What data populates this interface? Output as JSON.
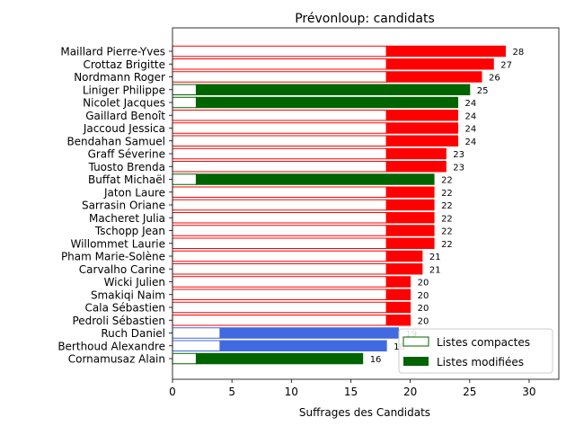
{
  "chart_data": {
    "type": "bar",
    "orientation": "horizontal",
    "stacked": true,
    "title": "Prévonloup: candidats",
    "xlabel": "Suffrages des Candidats",
    "ylabel": "",
    "xlim": [
      0,
      32.5
    ],
    "xticks": [
      0,
      5,
      10,
      15,
      20,
      25,
      30
    ],
    "grid": false,
    "legend_position": "lower-right",
    "categories": [
      "Maillard Pierre-Yves",
      "Crottaz Brigitte",
      "Nordmann Roger",
      "Liniger Philippe",
      "Nicolet Jacques",
      "Gaillard Benoît",
      "Jaccoud Jessica",
      "Bendahan Samuel",
      "Graff Séverine",
      "Tuosto Brenda",
      "Buffat Michaël",
      "Jaton Laure",
      "Sarrasin Oriane",
      "Macheret Julia",
      "Tschopp Jean",
      "Willommet Laurie",
      "Pham Marie-Solène",
      "Carvalho Carine",
      "Wicki Julien",
      "Smakiqi Naim",
      "Cala Sébastien",
      "Pedroli Sébastien",
      "Ruch Daniel",
      "Berthoud Alexandre",
      "Cornamusaz Alain"
    ],
    "series": [
      {
        "name": "Listes compactes",
        "values": [
          18,
          18,
          18,
          2,
          2,
          18,
          18,
          18,
          18,
          18,
          2,
          18,
          18,
          18,
          18,
          18,
          18,
          18,
          18,
          18,
          18,
          18,
          4,
          4,
          2
        ]
      },
      {
        "name": "Listes modifiées",
        "values": [
          10,
          9,
          8,
          23,
          22,
          6,
          6,
          6,
          5,
          5,
          20,
          4,
          4,
          4,
          4,
          4,
          3,
          3,
          2,
          2,
          2,
          2,
          15,
          14,
          14
        ]
      }
    ],
    "totals": [
      "28",
      "27",
      "26",
      "25",
      "24",
      "24",
      "24",
      "24",
      "23",
      "23",
      "22",
      "22",
      "22",
      "22",
      "22",
      "22",
      "21",
      "21",
      "20",
      "20",
      "20",
      "20",
      "19",
      "18",
      "16"
    ],
    "bar_colors": [
      "#ff0000",
      "#ff0000",
      "#ff0000",
      "#006400",
      "#006400",
      "#ff0000",
      "#ff0000",
      "#ff0000",
      "#ff0000",
      "#ff0000",
      "#006400",
      "#ff0000",
      "#ff0000",
      "#ff0000",
      "#ff0000",
      "#ff0000",
      "#ff0000",
      "#ff0000",
      "#ff0000",
      "#ff0000",
      "#ff0000",
      "#ff0000",
      "#4169e1",
      "#4169e1",
      "#006400"
    ],
    "legend": {
      "compact_edge": "#006400",
      "modified_fill": "#006400"
    }
  }
}
